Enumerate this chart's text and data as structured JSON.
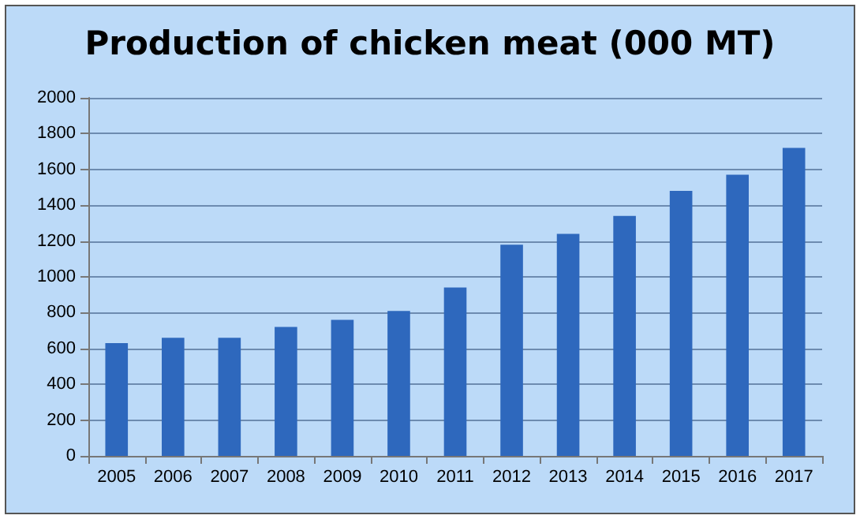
{
  "chart_data": {
    "type": "bar",
    "title": "Production of chicken meat (000 MT)",
    "categories": [
      "2005",
      "2006",
      "2007",
      "2008",
      "2009",
      "2010",
      "2011",
      "2012",
      "2013",
      "2014",
      "2015",
      "2016",
      "2017"
    ],
    "values": [
      630,
      660,
      660,
      720,
      760,
      810,
      940,
      1180,
      1240,
      1340,
      1480,
      1570,
      1720
    ],
    "color": "#2e68bd",
    "ylim": [
      0,
      2000
    ],
    "yticks": [
      0,
      200,
      400,
      600,
      800,
      1000,
      1200,
      1400,
      1600,
      1800,
      2000
    ],
    "grid": "y"
  }
}
